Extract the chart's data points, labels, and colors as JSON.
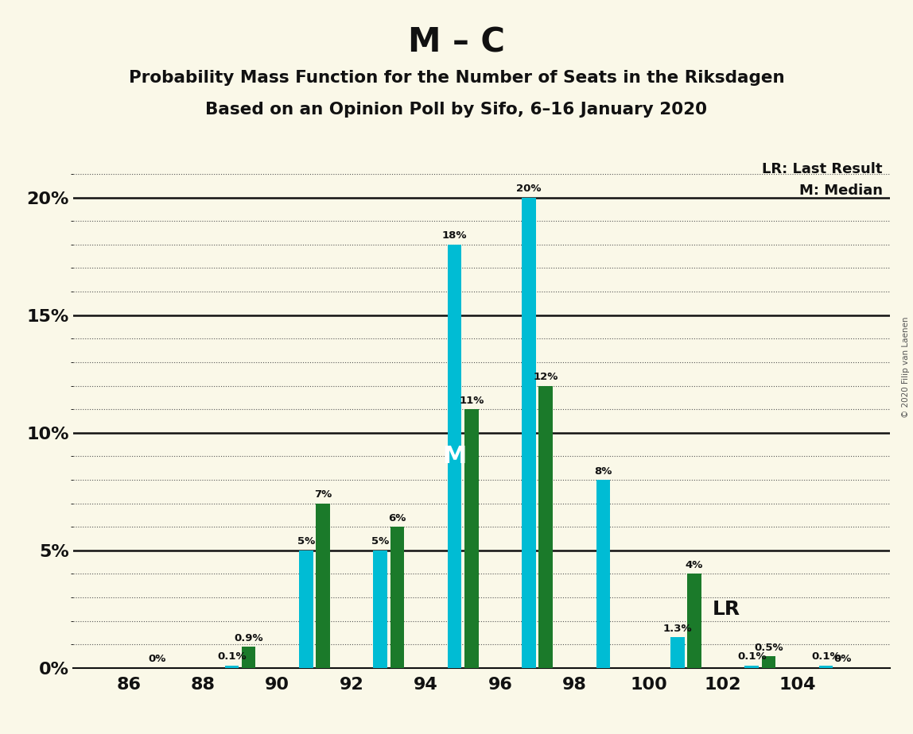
{
  "title": "M – C",
  "subtitle1": "Probability Mass Function for the Number of Seats in the Riksdagen",
  "subtitle2": "Based on an Opinion Poll by Sifo, 6–16 January 2020",
  "copyright": "© 2020 Filip van Laenen",
  "legend_lr": "LR: Last Result",
  "legend_m": "M: Median",
  "seat_pairs": [
    86,
    88,
    90,
    92,
    94,
    96,
    98,
    100,
    102,
    104
  ],
  "m_values": [
    0.0,
    0.1,
    5.0,
    5.0,
    18.0,
    20.0,
    8.0,
    1.3,
    0.1,
    0.1
  ],
  "c_values": [
    0.0,
    0.9,
    7.0,
    6.0,
    11.0,
    12.0,
    0.0,
    4.0,
    0.5,
    0.0
  ],
  "m_labels": [
    "0%",
    "0.1%",
    "5%",
    "5%",
    "18%",
    "20%",
    "8%",
    "1.3%",
    "0.1%",
    "0.1%"
  ],
  "c_labels": [
    "",
    "0.9%",
    "7%",
    "6%",
    "11%",
    "12%",
    "",
    "4%",
    "0.5%",
    "0%"
  ],
  "m_color": "#00bcd4",
  "c_color": "#1b7a2a",
  "background_color": "#faf8e8",
  "ylim": [
    0,
    22
  ],
  "ytick_majors": [
    0,
    5,
    10,
    15,
    20
  ],
  "ytick_minors": [
    1,
    2,
    3,
    4,
    6,
    7,
    8,
    9,
    11,
    12,
    13,
    14,
    16,
    17,
    18,
    19,
    21
  ],
  "bar_width": 0.75,
  "bar_gap": 0.08,
  "median_bar_index": 4,
  "lr_bar_index": 7,
  "xtick_labels": [
    "86",
    "88",
    "90",
    "92",
    "94",
    "96",
    "98",
    "100",
    "102",
    "104"
  ]
}
